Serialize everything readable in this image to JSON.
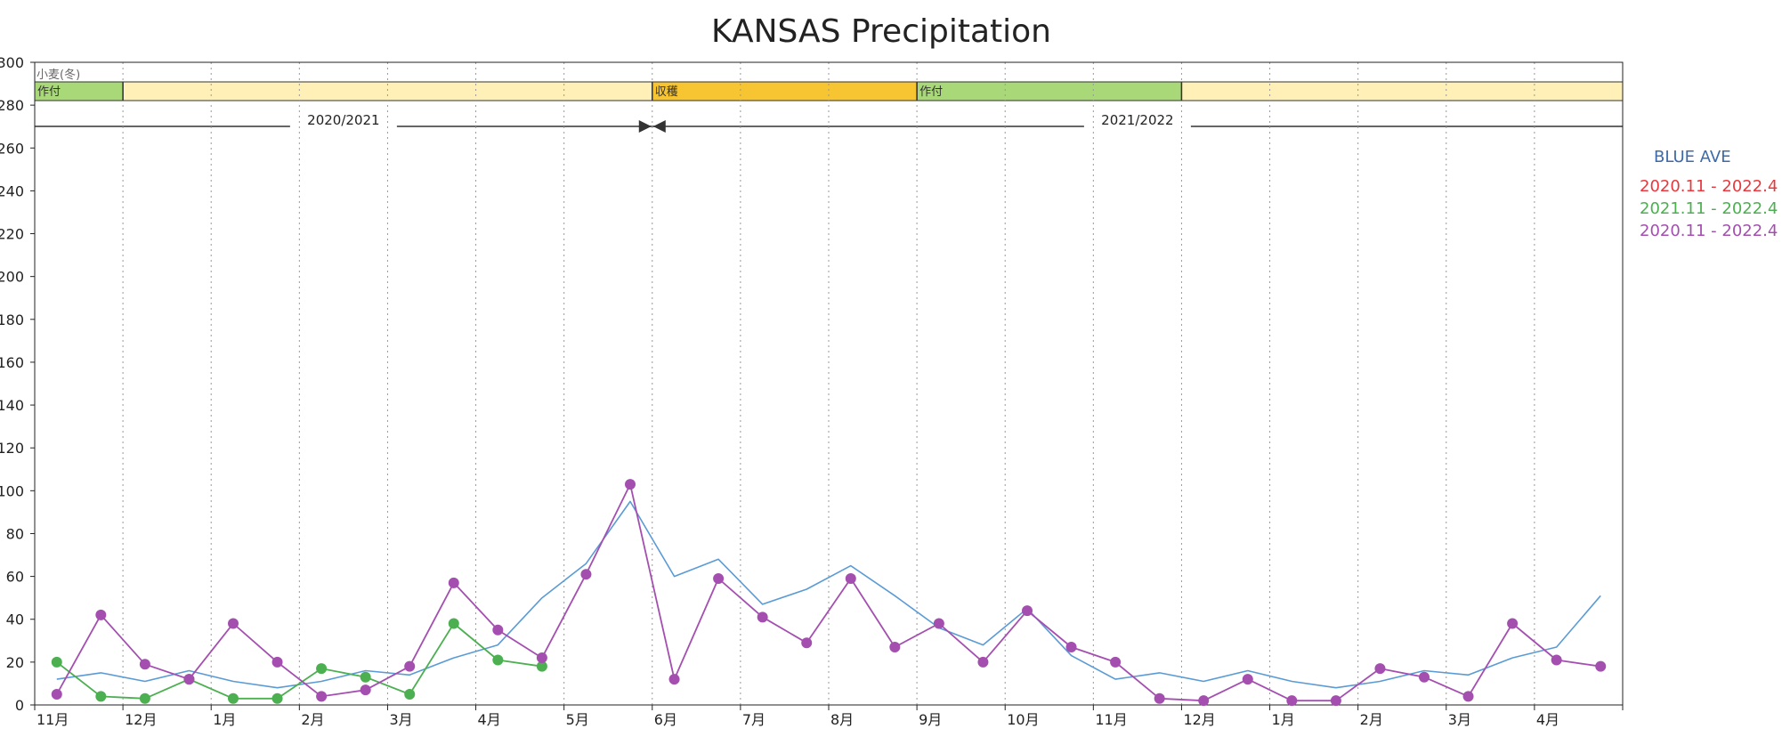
{
  "chart_data": {
    "type": "line",
    "title": "KANSAS Precipitation",
    "crop_label": "小麦(冬)",
    "ylim": [
      0,
      300
    ],
    "y_ticks": [
      0,
      20,
      40,
      60,
      80,
      100,
      120,
      140,
      160,
      180,
      200,
      220,
      240,
      260,
      280,
      300
    ],
    "x_tick_labels": [
      "11月",
      "12月",
      "1月",
      "2月",
      "3月",
      "4月",
      "5月",
      "6月",
      "7月",
      "8月",
      "9月",
      "10月",
      "11月",
      "12月",
      "1月",
      "2月",
      "3月",
      "4月"
    ],
    "stages": [
      {
        "label": "作付",
        "start": 0,
        "end": 1,
        "color": "#a8d878"
      },
      {
        "label": "",
        "start": 1,
        "end": 7,
        "color": "#fff0b8"
      },
      {
        "label": "収穫",
        "start": 7,
        "end": 10,
        "color": "#f7c531"
      },
      {
        "label": "作付",
        "start": 10,
        "end": 13,
        "color": "#a8d878"
      },
      {
        "label": "",
        "start": 13,
        "end": 18,
        "color": "#fff0b8"
      }
    ],
    "seasons": [
      {
        "label": "2020/2021",
        "start": 0,
        "end": 7
      },
      {
        "label": "2021/2022",
        "start": 7,
        "end": 18
      }
    ],
    "legend": [
      {
        "label": "BLUE AVE",
        "color": "#3d6aa8"
      },
      {
        "label": "2020.11 - 2022.4",
        "color": "#e8383d"
      },
      {
        "label": "2021.11 - 2022.4",
        "color": "#4caf50"
      },
      {
        "label": "2020.11 - 2022.4",
        "color": "#a44fb0"
      }
    ],
    "series": [
      {
        "name": "BLUE AVE",
        "color": "#5b9bd5",
        "markers": false,
        "x": [
          0.25,
          0.75,
          1.25,
          1.75,
          2.25,
          2.75,
          3.25,
          3.75,
          4.25,
          4.75,
          5.25,
          5.75,
          6.25,
          6.75,
          7.25,
          7.75,
          8.25,
          8.75,
          9.25,
          9.75,
          10.25,
          10.75,
          11.25,
          11.75,
          12.25,
          12.75,
          13.25,
          13.75,
          14.25,
          14.75,
          15.25,
          15.75,
          16.25,
          16.75,
          17.25,
          17.75
        ],
        "y": [
          12,
          15,
          11,
          16,
          11,
          8,
          11,
          16,
          14,
          22,
          28,
          50,
          66,
          95,
          60,
          68,
          47,
          54,
          65,
          51,
          36,
          28,
          45,
          23,
          12,
          15,
          11,
          16,
          11,
          8,
          11,
          16,
          14,
          22,
          27,
          51
        ]
      },
      {
        "name": "2021.11 - 2022.4",
        "color": "#4caf50",
        "markers": true,
        "x": [
          0.25,
          0.75,
          1.25,
          1.75,
          2.25,
          2.75,
          3.25,
          3.75,
          4.25,
          4.75,
          5.25,
          5.75
        ],
        "y": [
          20,
          4,
          3,
          12,
          3,
          3,
          17,
          13,
          5,
          38,
          21,
          18
        ]
      },
      {
        "name": "2020.11 - 2022.4",
        "color": "#a44fb0",
        "markers": true,
        "x": [
          0.25,
          0.75,
          1.25,
          1.75,
          2.25,
          2.75,
          3.25,
          3.75,
          4.25,
          4.75,
          5.25,
          5.75,
          6.25,
          6.75,
          7.25,
          7.75,
          8.25,
          8.75,
          9.25,
          9.75,
          10.25,
          10.75,
          11.25,
          11.75,
          12.25,
          12.75,
          13.25,
          13.75,
          14.25,
          14.75,
          15.25,
          15.75,
          16.25,
          16.75,
          17.25,
          17.75
        ],
        "y": [
          5,
          42,
          19,
          12,
          38,
          20,
          4,
          7,
          18,
          57,
          35,
          22,
          61,
          103,
          12,
          59,
          41,
          29,
          59,
          27,
          38,
          20,
          44,
          27,
          20,
          3,
          2,
          12,
          2,
          2,
          17,
          13,
          4,
          38,
          21,
          18
        ]
      }
    ]
  }
}
